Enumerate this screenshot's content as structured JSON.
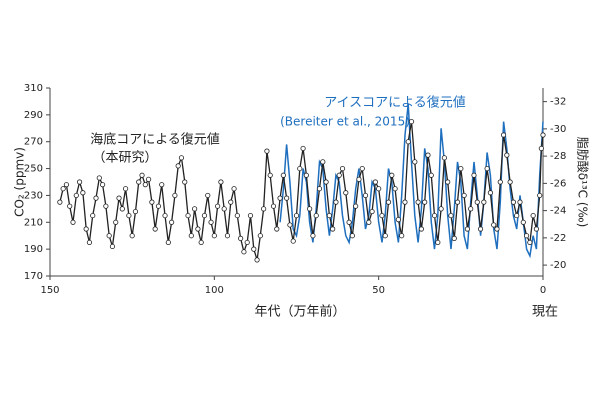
{
  "chart_data": {
    "type": "line",
    "annotations": [
      "海底コアによる復元値",
      "（本研究）",
      "アイスコアによる復元値",
      "(Bereiter et al., 2015)"
    ],
    "xlabel": "年代（万年前）",
    "xlabel_right": "現在",
    "ylabel": "CO₂ (ppmv)",
    "y2label": "脂肪酸δ¹³C (‰)",
    "xlim": [
      150,
      0
    ],
    "xticks": [
      150,
      100,
      50,
      0
    ],
    "ylim": [
      170,
      310
    ],
    "yticks": [
      170,
      190,
      210,
      230,
      250,
      270,
      290,
      310
    ],
    "y2lim": [
      -19.2,
      -33
    ],
    "y2ticks": [
      -20,
      -22,
      -24,
      -26,
      -28,
      -30,
      -32
    ],
    "series": [
      {
        "name": "海底コアによる復元値",
        "color": "#222222",
        "markers": true,
        "x": [
          147,
          146,
          145,
          144,
          143,
          142,
          141,
          140,
          139,
          138,
          137,
          136,
          135,
          134,
          133,
          132,
          131,
          130,
          129,
          128,
          127,
          126,
          125,
          124,
          123,
          122,
          121,
          120,
          119,
          118,
          117,
          116,
          115,
          114,
          113,
          112,
          111,
          110,
          109,
          108,
          107,
          106,
          105,
          104,
          103,
          102,
          101,
          100,
          99,
          98,
          97,
          96,
          95,
          94,
          93,
          92,
          91,
          90,
          89,
          88,
          87,
          86,
          85,
          84,
          83,
          82,
          81,
          80,
          79,
          78,
          77,
          76,
          75,
          74,
          73,
          72,
          71,
          70,
          69,
          68,
          67,
          66,
          65,
          64,
          63,
          62,
          61,
          60,
          59,
          58,
          57,
          56,
          55,
          54,
          53,
          52,
          51,
          50,
          49,
          48,
          47,
          46,
          45,
          44,
          43,
          42,
          41,
          40,
          39,
          38,
          37,
          36,
          35,
          34,
          33,
          32,
          31,
          30,
          29,
          28,
          27,
          26,
          25,
          24,
          23,
          22,
          21,
          20,
          19,
          18,
          17,
          16,
          15,
          14,
          13,
          12,
          11,
          10,
          9,
          8,
          7,
          6,
          5,
          4,
          3,
          2,
          1,
          0.5,
          0
        ],
        "values": [
          225,
          235,
          238,
          222,
          210,
          230,
          240,
          232,
          205,
          195,
          215,
          228,
          243,
          238,
          222,
          200,
          192,
          210,
          228,
          220,
          235,
          215,
          200,
          218,
          240,
          245,
          238,
          242,
          225,
          205,
          222,
          238,
          215,
          195,
          210,
          230,
          252,
          258,
          240,
          215,
          200,
          220,
          205,
          195,
          215,
          230,
          210,
          200,
          222,
          240,
          220,
          200,
          225,
          235,
          215,
          198,
          188,
          195,
          215,
          190,
          182,
          200,
          220,
          263,
          245,
          222,
          205,
          228,
          245,
          228,
          208,
          196,
          215,
          250,
          265,
          245,
          220,
          200,
          215,
          235,
          255,
          240,
          215,
          205,
          225,
          245,
          250,
          232,
          210,
          200,
          222,
          242,
          250,
          230,
          210,
          218,
          240,
          235,
          215,
          200,
          225,
          245,
          235,
          212,
          200,
          225,
          270,
          285,
          255,
          225,
          205,
          225,
          260,
          245,
          215,
          195,
          220,
          258,
          240,
          215,
          198,
          225,
          250,
          230,
          205,
          220,
          245,
          225,
          205,
          225,
          250,
          232,
          208,
          205,
          240,
          275,
          260,
          240,
          225,
          215,
          225,
          210,
          200,
          195,
          215,
          205,
          230,
          265,
          275
        ]
      },
      {
        "name": "アイスコアによる復元値",
        "color": "#1f6fbf",
        "markers": false,
        "x": [
          80,
          79,
          78,
          77,
          76,
          75,
          74,
          73,
          72,
          71,
          70,
          69,
          68,
          67,
          66,
          65,
          64,
          63,
          62,
          61,
          60,
          59,
          58,
          57,
          56,
          55,
          54,
          53,
          52,
          51,
          50,
          49,
          48,
          47,
          46,
          45,
          44,
          43,
          42,
          41,
          40,
          39,
          38,
          37,
          36,
          35,
          34,
          33,
          32,
          31,
          30,
          29,
          28,
          27,
          26,
          25,
          24,
          23,
          22,
          21,
          20,
          19,
          18,
          17,
          16,
          15,
          14,
          13,
          12,
          11,
          10,
          9,
          8,
          7,
          6,
          5,
          4,
          3,
          2,
          1,
          0
        ],
        "values": [
          210,
          235,
          268,
          240,
          205,
          200,
          215,
          250,
          240,
          210,
          195,
          220,
          255,
          250,
          220,
          200,
          220,
          245,
          240,
          215,
          200,
          195,
          210,
          235,
          250,
          230,
          205,
          215,
          240,
          235,
          210,
          195,
          215,
          250,
          240,
          210,
          195,
          230,
          275,
          298,
          255,
          215,
          195,
          220,
          265,
          250,
          210,
          190,
          215,
          280,
          255,
          215,
          190,
          220,
          255,
          240,
          200,
          190,
          225,
          255,
          230,
          200,
          225,
          262,
          245,
          205,
          190,
          225,
          285,
          265,
          235,
          215,
          205,
          230,
          210,
          190,
          185,
          200,
          190,
          245,
          285
        ]
      }
    ]
  }
}
